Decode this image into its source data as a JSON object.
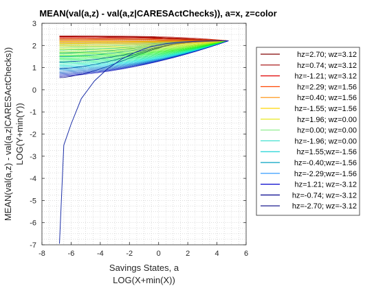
{
  "chart_data": {
    "type": "line",
    "title": "MEAN(val(a,z) - val(a,z|CARESActChecks)), a=x, z=color",
    "xlabel_lines": [
      "Savings States, a",
      "LOG(X+min(X))"
    ],
    "ylabel_lines": [
      "MEAN(val(a,z) - val(a,z|CARESActChecks))",
      "LOG(Y+min(Y))"
    ],
    "xlim": [
      -8,
      6
    ],
    "ylim": [
      -7,
      3
    ],
    "xticks": [
      "-8",
      "-6",
      "-4",
      "-2",
      "0",
      "2",
      "4",
      "6"
    ],
    "yticks": [
      "-7",
      "-6",
      "-5",
      "-4",
      "-3",
      "-2",
      "-1",
      "0",
      "1",
      "2",
      "3"
    ],
    "grid": "minor-dotted",
    "legend_position": "right",
    "x": [
      -6.8,
      -6.5,
      -6.0,
      -5.2,
      -4.3,
      -3.4,
      -2.5,
      -1.7,
      -1.0,
      -0.3,
      0.3,
      1.0,
      1.8,
      2.6,
      3.4,
      4.1,
      4.8
    ],
    "series": [
      {
        "name": "hz=2.70; wz=3.12",
        "color": "#800000",
        "values": [
          2.43,
          2.43,
          2.43,
          2.42,
          2.42,
          2.41,
          2.41,
          2.4,
          2.39,
          2.38,
          2.36,
          2.34,
          2.31,
          2.28,
          2.25,
          2.23,
          2.21
        ]
      },
      {
        "name": "hz=0.74; wz=3.12",
        "color": "#a00000",
        "values": [
          2.4,
          2.4,
          2.4,
          2.39,
          2.39,
          2.38,
          2.38,
          2.37,
          2.36,
          2.35,
          2.33,
          2.31,
          2.29,
          2.26,
          2.24,
          2.22,
          2.21
        ]
      },
      {
        "name": "hz=-1.21; wz=3.12",
        "color": "#e00000",
        "values": [
          2.36,
          2.36,
          2.36,
          2.36,
          2.35,
          2.35,
          2.34,
          2.34,
          2.33,
          2.32,
          2.3,
          2.29,
          2.27,
          2.25,
          2.23,
          2.22,
          2.21
        ]
      },
      {
        "name": "hz=2.29; wz=1.56",
        "color": "#ff4500",
        "values": [
          2.3,
          2.3,
          2.3,
          2.3,
          2.29,
          2.29,
          2.29,
          2.28,
          2.28,
          2.27,
          2.26,
          2.25,
          2.24,
          2.23,
          2.22,
          2.21,
          2.21
        ]
      },
      {
        "name": "hz=0.40; wz=1.56",
        "color": "#ff8c00",
        "values": [
          2.24,
          2.24,
          2.24,
          2.24,
          2.24,
          2.24,
          2.23,
          2.23,
          2.23,
          2.23,
          2.22,
          2.22,
          2.22,
          2.21,
          2.21,
          2.21,
          2.21
        ]
      },
      {
        "name": "hz=-1.55; wz=1.56",
        "color": "#ffd700",
        "values": [
          2.18,
          2.18,
          2.18,
          2.18,
          2.18,
          2.18,
          2.18,
          2.18,
          2.18,
          2.18,
          2.19,
          2.19,
          2.2,
          2.2,
          2.2,
          2.21,
          2.21
        ]
      },
      {
        "name": "hz=1.96; wz=0.00",
        "color": "#e6e600",
        "values": [
          2.1,
          2.1,
          2.1,
          2.1,
          2.11,
          2.11,
          2.12,
          2.13,
          2.14,
          2.15,
          2.17,
          2.18,
          2.19,
          2.2,
          2.2,
          2.21,
          2.21
        ]
      },
      {
        "name": "hz=0.00; wz=0.00",
        "color": "#90ee90",
        "values": [
          2.02,
          2.02,
          2.02,
          2.03,
          2.04,
          2.05,
          2.06,
          2.08,
          2.1,
          2.12,
          2.14,
          2.16,
          2.18,
          2.19,
          2.2,
          2.21,
          2.21
        ]
      },
      {
        "name": "hz=-1.96; wz=0.00",
        "color": "#40e0d0",
        "values": [
          1.92,
          1.92,
          1.93,
          1.94,
          1.95,
          1.97,
          1.99,
          2.02,
          2.05,
          2.08,
          2.11,
          2.14,
          2.17,
          2.19,
          2.2,
          2.21,
          2.21
        ]
      },
      {
        "name": "hz=1.55;wz=-1.56",
        "color": "#00ced1",
        "values": [
          1.8,
          1.8,
          1.81,
          1.82,
          1.84,
          1.87,
          1.9,
          1.94,
          1.99,
          2.04,
          2.08,
          2.12,
          2.15,
          2.18,
          2.2,
          2.21,
          2.21
        ]
      },
      {
        "name": "hz=-0.40;wz=-1.56",
        "color": "#00a0c0",
        "values": [
          1.66,
          1.66,
          1.67,
          1.69,
          1.72,
          1.76,
          1.81,
          1.87,
          1.93,
          1.99,
          2.05,
          2.1,
          2.14,
          2.17,
          2.19,
          2.21,
          2.21
        ]
      },
      {
        "name": "hz=-2.29;wz=-1.56",
        "color": "#1e90ff",
        "values": [
          1.5,
          1.5,
          1.51,
          1.54,
          1.58,
          1.64,
          1.71,
          1.79,
          1.87,
          1.95,
          2.02,
          2.08,
          2.13,
          2.17,
          2.19,
          2.21,
          2.21
        ]
      },
      {
        "name": "hz=1.21; wz=-3.12",
        "color": "#0000cd",
        "values": [
          1.25,
          1.25,
          1.27,
          1.31,
          1.37,
          1.46,
          1.56,
          1.67,
          1.78,
          1.89,
          1.98,
          2.06,
          2.12,
          2.16,
          2.19,
          2.2,
          2.21
        ]
      },
      {
        "name": "hz=-0.74; wz=-3.12",
        "color": "#00008b",
        "values": [
          0.95,
          0.96,
          0.99,
          1.05,
          1.15,
          1.28,
          1.43,
          1.58,
          1.72,
          1.85,
          1.96,
          2.05,
          2.11,
          2.16,
          2.19,
          2.2,
          2.21
        ]
      },
      {
        "name": "hz=-2.70; wz=-3.12",
        "color": "#000080",
        "values": [
          0.55,
          0.56,
          0.61,
          0.71,
          0.88,
          1.08,
          1.3,
          1.5,
          1.67,
          1.82,
          1.94,
          2.04,
          2.11,
          2.16,
          2.19,
          2.2,
          2.21
        ]
      }
    ],
    "extra_line": {
      "color": "#1c2fa8",
      "points": [
        [
          -6.8,
          -6.95
        ],
        [
          -6.5,
          -2.5
        ],
        [
          -6.0,
          -1.55
        ],
        [
          -5.3,
          -0.4
        ],
        [
          -4.4,
          0.4
        ],
        [
          -3.5,
          0.95
        ],
        [
          -2.5,
          1.4
        ],
        [
          -1.5,
          1.72
        ],
        [
          -0.5,
          1.95
        ],
        [
          0.5,
          2.08
        ],
        [
          1.5,
          2.15
        ],
        [
          2.5,
          2.19
        ],
        [
          3.5,
          2.2
        ],
        [
          4.8,
          2.21
        ]
      ]
    }
  }
}
